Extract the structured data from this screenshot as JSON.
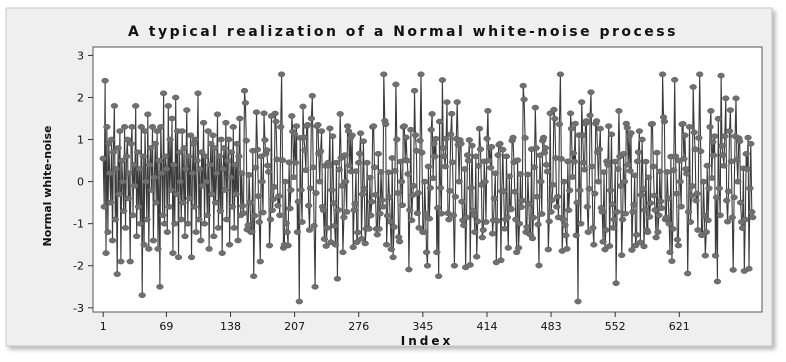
{
  "chart_data": {
    "type": "line",
    "title": "A typical realization of a Normal white-noise process",
    "xlabel": "Index",
    "ylabel": "Normal white-noise",
    "x_ticks": [
      1,
      69,
      138,
      207,
      276,
      345,
      414,
      483,
      552,
      621
    ],
    "y_ticks": [
      -3,
      -2,
      -1,
      0,
      1,
      2,
      3
    ],
    "xlim": [
      -10,
      710
    ],
    "ylim": [
      -3.1,
      3.2
    ],
    "n_points": 700,
    "series": [
      {
        "name": "",
        "style": "line-with-markers",
        "values": [
          0.55,
          -0.6,
          2.4,
          -1.7,
          1.3,
          -1.2,
          0.9,
          0.2,
          -0.5,
          1.0,
          -1.4,
          0.7,
          1.8,
          -0.9,
          0.3,
          -2.2,
          0.8,
          -0.3,
          1.2,
          -1.9,
          0.5,
          0.0,
          -0.7,
          1.3,
          -1.1,
          0.6,
          1.0,
          -0.4,
          0.2,
          -1.9,
          0.9,
          1.3,
          -0.8,
          0.4,
          -0.1,
          1.8,
          -1.3,
          0.7,
          -0.6,
          0.3,
          -1.0,
          1.3,
          -2.7,
          0.6,
          -1.5,
          1.2,
          0.0,
          -0.9,
          1.6,
          -1.6,
          0.4,
          0.8,
          -0.2,
          1.3,
          -1.4,
          0.1,
          0.9,
          -0.5,
          1.2,
          -1.6,
          0.5,
          -2.5,
          1.3,
          0.2,
          -0.8,
          2.1,
          -1.0,
          0.6,
          0.3,
          -1.2,
          1.8,
          -0.6,
          1.0,
          -0.2,
          1.5,
          -1.7,
          0.4,
          -1.0,
          2.0,
          -0.3,
          1.2,
          -1.8,
          0.7,
          0.0,
          -0.9,
          1.2,
          -0.5,
          0.8,
          -1.3,
          0.3,
          1.7,
          -1.0,
          0.6,
          -0.4,
          1.1,
          -1.8,
          0.2,
          0.9,
          -0.6,
          1.0,
          -1.2,
          0.5,
          2.1,
          -0.9,
          0.3,
          -1.4,
          0.7,
          -0.1,
          1.4,
          -1.0,
          0.6,
          0.0,
          -0.8,
          1.2,
          -1.6,
          0.4,
          0.9,
          -0.3,
          1.1,
          -1.3,
          0.8,
          -0.5,
          0.2,
          1.6,
          -1.1,
          0.6,
          -0.7,
          1.0,
          -1.7,
          0.3,
          0.8,
          -0.2,
          1.4,
          -0.9,
          0.5,
          1.0,
          -1.5,
          0.1,
          0.7,
          -0.6,
          1.3,
          -1.1,
          0.4,
          -0.3,
          0.9,
          -1.4,
          0.6,
          1.5,
          -0.8,
          0.2
        ]
      }
    ]
  }
}
